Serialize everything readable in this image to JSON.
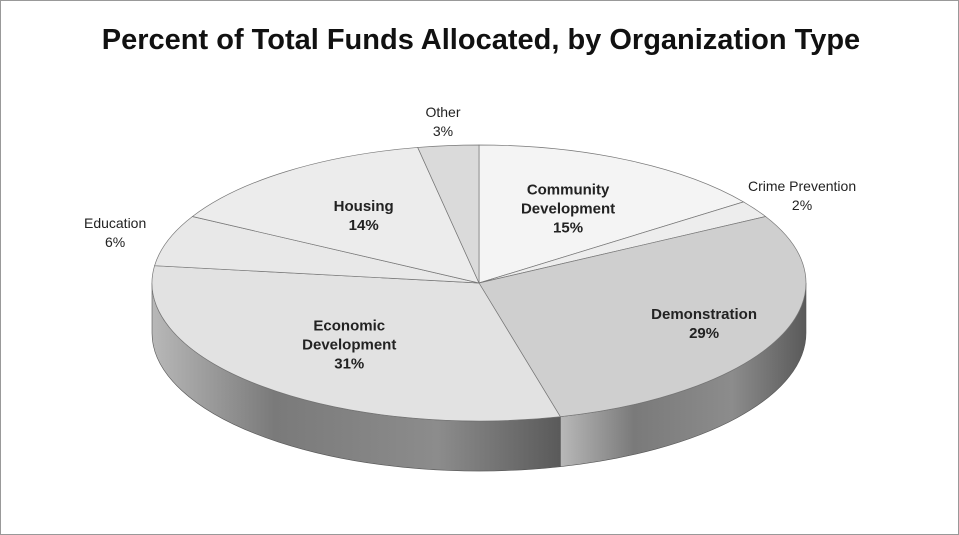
{
  "chart_data": {
    "type": "pie",
    "title": "Percent of Total Funds Allocated, by Organization Type",
    "categories": [
      "Community Development",
      "Crime Prevention",
      "Demonstration",
      "Economic Development",
      "Education",
      "Housing",
      "Other"
    ],
    "values": [
      15,
      2,
      29,
      31,
      6,
      14,
      3
    ],
    "value_labels": [
      "15%",
      "2%",
      "29%",
      "31%",
      "6%",
      "14%",
      "3%"
    ],
    "colors": [
      "#f4f4f4",
      "#ededed",
      "#cfcfcf",
      "#e2e2e2",
      "#e8e8e8",
      "#ececec",
      "#dadada"
    ]
  }
}
